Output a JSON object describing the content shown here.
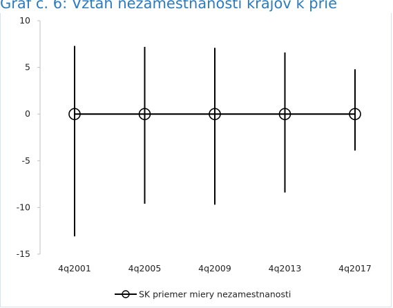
{
  "title": "Graf č. 6: Vzťah nezamestnanosti krajov k prie",
  "colors": {
    "title": "#2b7bbf",
    "series": "#000000"
  },
  "chart_data": {
    "type": "line",
    "categories": [
      "4q2001",
      "4q2005",
      "4q2009",
      "4q2013",
      "4q2017"
    ],
    "series": [
      {
        "name": "SK priemer miery nezamestnanosti",
        "values": [
          0,
          0,
          0,
          0,
          0
        ],
        "marker": "circle",
        "range_high": [
          7.3,
          7.2,
          7.1,
          6.6,
          4.8
        ],
        "range_low": [
          -13.1,
          -9.6,
          -9.7,
          -8.4,
          -3.9
        ]
      }
    ],
    "y_ticks": [
      "10",
      "5",
      "0",
      "-5",
      "-10",
      "-15"
    ],
    "ylim": [
      -15,
      10
    ],
    "grid": false,
    "legend": "bottom"
  }
}
